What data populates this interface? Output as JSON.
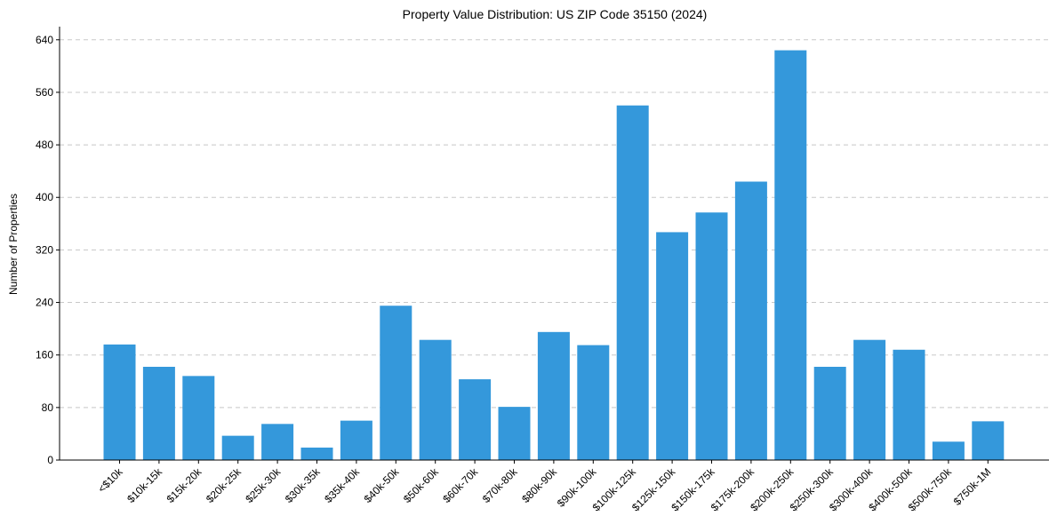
{
  "chart_data": {
    "type": "bar",
    "title": "Property Value Distribution: US ZIP Code 35150 (2024)",
    "xlabel": "",
    "ylabel": "Number of Properties",
    "ylim": [
      0,
      660
    ],
    "yticks": [
      0,
      80,
      160,
      240,
      320,
      400,
      480,
      560,
      640
    ],
    "grid": "y-dashed",
    "bar_color": "#3498db",
    "categories": [
      "<$10k",
      "$10k-15k",
      "$15k-20k",
      "$20k-25k",
      "$25k-30k",
      "$30k-35k",
      "$35k-40k",
      "$40k-50k",
      "$50k-60k",
      "$60k-70k",
      "$70k-80k",
      "$80k-90k",
      "$90k-100k",
      "$100k-125k",
      "$125k-150k",
      "$150k-175k",
      "$175k-200k",
      "$200k-250k",
      "$250k-300k",
      "$300k-400k",
      "$400k-500k",
      "$500k-750k",
      "$750k-1M"
    ],
    "values": [
      176,
      142,
      128,
      37,
      55,
      19,
      60,
      235,
      183,
      123,
      81,
      195,
      175,
      540,
      347,
      377,
      424,
      624,
      142,
      183,
      168,
      28,
      59
    ]
  }
}
